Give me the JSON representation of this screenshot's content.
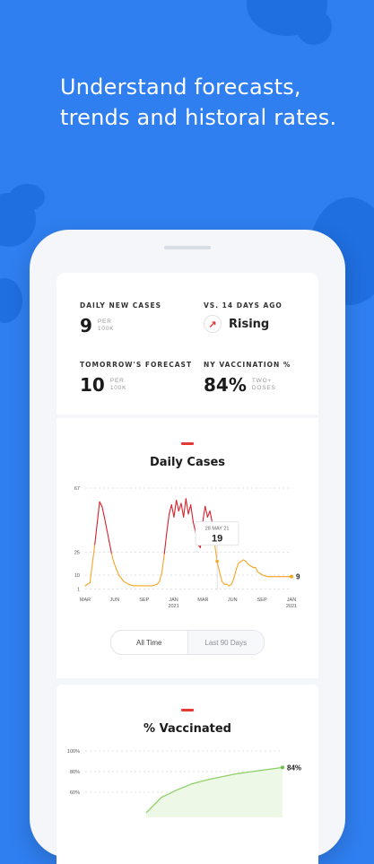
{
  "headline": {
    "line1": "Understand forecasts,",
    "line2": "trends and historal rates."
  },
  "stats": {
    "daily_new_cases": {
      "label": "DAILY NEW CASES",
      "value": "9",
      "unit1": "PER",
      "unit2": "100K"
    },
    "vs_14_days": {
      "label": "VS. 14 DAYS AGO",
      "trend": "Rising",
      "icon": "arrow-up-right-icon"
    },
    "forecast": {
      "label": "TOMORROW'S FORECAST",
      "value": "10",
      "unit1": "PER",
      "unit2": "100K"
    },
    "vaccination": {
      "label": "NY VACCINATION %",
      "value": "84%",
      "unit1": "TWO+",
      "unit2": "DOSES"
    }
  },
  "daily_cases": {
    "title": "Daily Cases",
    "tooltip_date": "28 MAY 21",
    "tooltip_value": "19",
    "end_value": "9",
    "toggle": [
      "All Time",
      "Last 90 Days"
    ]
  },
  "vaccinated": {
    "title": "% Vaccinated",
    "end_label": "84%"
  },
  "colors": {
    "background": "#2f7ff0",
    "high": "#d8202a",
    "low": "#f5a623",
    "vax_line": "#8fd16a",
    "accent": "#e53935"
  },
  "chart_data": [
    {
      "type": "line",
      "title": "Daily Cases",
      "yticks": [
        1,
        10,
        25,
        67
      ],
      "ylim": [
        0,
        67
      ],
      "xticks": [
        "MAR",
        "JUN",
        "SEP",
        "JAN\n2021",
        "MAR",
        "JUN",
        "SEP",
        "JAN\n2021"
      ],
      "x": [
        0,
        2,
        4,
        6,
        7,
        8,
        9,
        10,
        11,
        12,
        14,
        16,
        18,
        20,
        22,
        24,
        26,
        28,
        30,
        31,
        32,
        33,
        34,
        35,
        36,
        37,
        38,
        39,
        40,
        41,
        42,
        43,
        44,
        45,
        46,
        47,
        48,
        49,
        50,
        51,
        52,
        53,
        54,
        55,
        56,
        57,
        58,
        59,
        60,
        61,
        62,
        63,
        64,
        65,
        66,
        67,
        68,
        69,
        70,
        71,
        72,
        74,
        76,
        77,
        78,
        79,
        80,
        81,
        82,
        83,
        84,
        85,
        86
      ],
      "values": [
        3,
        5,
        30,
        58,
        55,
        48,
        40,
        32,
        24,
        18,
        10,
        6,
        4,
        3,
        3,
        3,
        3,
        3,
        4,
        6,
        12,
        24,
        38,
        50,
        56,
        48,
        59,
        52,
        57,
        48,
        60,
        50,
        56,
        45,
        38,
        30,
        28,
        45,
        55,
        48,
        52,
        44,
        30,
        19,
        12,
        6,
        4,
        4,
        3,
        4,
        8,
        14,
        18,
        19,
        20,
        19,
        17,
        16,
        15,
        15,
        12,
        10,
        9,
        9,
        9,
        9,
        9,
        9,
        9,
        9,
        9,
        9,
        9
      ],
      "highlight": {
        "date": "28 MAY 21",
        "value": 19
      },
      "last_value": 9,
      "grid": true
    },
    {
      "type": "area",
      "title": "% Vaccinated",
      "yticks": [
        "100%",
        "80%",
        "60%"
      ],
      "ylim": [
        0,
        100
      ],
      "values": [
        40,
        55,
        62,
        68,
        72,
        75,
        78,
        80,
        82,
        84
      ],
      "last_value": "84%"
    }
  ]
}
